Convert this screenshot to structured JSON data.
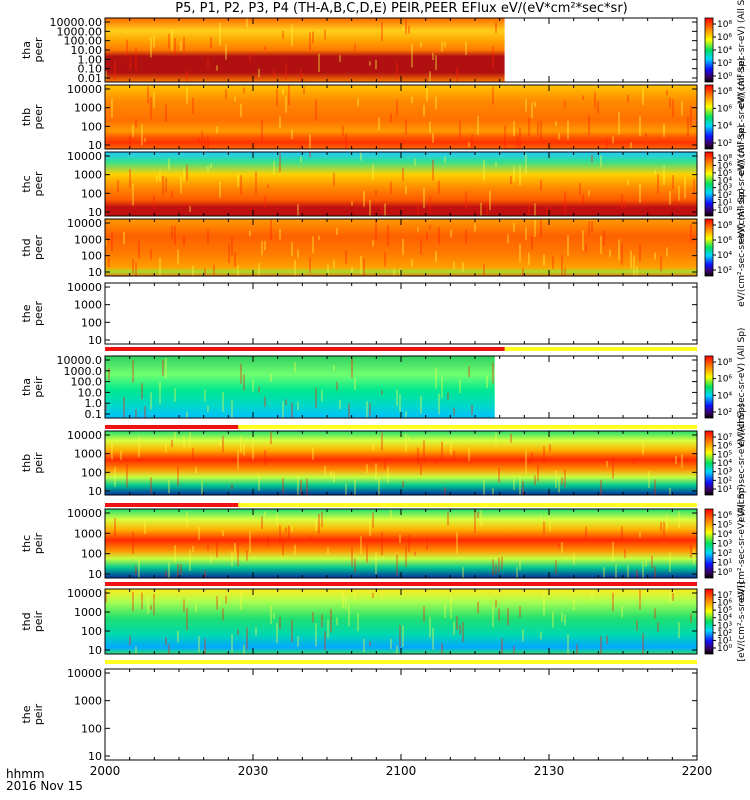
{
  "title": "P5, P1, P2, P3, P4 (TH-A,B,C,D,E) PEIR,PEER EFlux eV/(eV*cm²*sec*sr)",
  "x_axis": {
    "label_line1": "hhmm",
    "label_line2": "2016 Nov 15",
    "ticks": [
      "2000",
      "2030",
      "2100",
      "2130",
      "2200"
    ]
  },
  "colors": {
    "flag_red": "#ee1111",
    "flag_yellow": "#ffff22",
    "flag_black": "#000000"
  },
  "chart_data": [
    {
      "type": "heatmap",
      "id": "tha_peer",
      "ylabel": [
        "tha",
        "peer"
      ],
      "yticks": [
        "10000.00",
        "1000.00",
        "100.00",
        "10.00",
        "1.00",
        "0.10",
        "0.01"
      ],
      "data_end_hhmm": "2121",
      "cbar_ticks": [
        "10⁸",
        "10⁶",
        "10⁴",
        "10²",
        "10⁰"
      ],
      "cbar_label": "eV/(cm²-sec-sr-eV) (All Sp)"
    },
    {
      "type": "heatmap",
      "id": "thb_peer",
      "ylabel": [
        "thb",
        "peer"
      ],
      "yticks": [
        "10000",
        "1000",
        "100",
        "10"
      ],
      "data_end_hhmm": "2200",
      "cbar_ticks": [
        "10⁸",
        "10⁶",
        "10⁴",
        "10²"
      ],
      "cbar_label": "eV/(cm²-sec-sr-eV) (All Sp)"
    },
    {
      "type": "heatmap",
      "id": "thc_peer",
      "ylabel": [
        "thc",
        "peer"
      ],
      "yticks": [
        "10000",
        "1000",
        "100",
        "10"
      ],
      "data_end_hhmm": "2200",
      "cbar_ticks": [
        "10⁸",
        "10⁶",
        "10⁵",
        "10⁴",
        "10³",
        "10²",
        "10¹",
        "10⁰"
      ],
      "cbar_label": "eV/(cm²-sec-sr-eV) (All Sp)"
    },
    {
      "type": "heatmap",
      "id": "thd_peer",
      "ylabel": [
        "thd",
        "peer"
      ],
      "yticks": [
        "10000",
        "1000",
        "100",
        "10"
      ],
      "data_end_hhmm": "2200",
      "cbar_ticks": [
        "10⁸",
        "10⁶",
        "10⁴",
        "10²"
      ],
      "cbar_label": "eV/(cm²-sec-sr-eV) (All Sp)"
    },
    {
      "type": "heatmap",
      "id": "the_peer",
      "ylabel": [
        "the",
        "peer"
      ],
      "yticks": [
        "10000",
        "1000",
        "100",
        "10"
      ],
      "data_end_hhmm": null,
      "flag_red_until_hhmm": "2121",
      "cbar_ticks": [],
      "cbar_label": "eV/(cm²-sec-sr-eV) (All Sp)"
    },
    {
      "type": "heatmap",
      "id": "tha_peir",
      "ylabel": [
        "tha",
        "peir"
      ],
      "yticks": [
        "10000.0",
        "1000.0",
        "100.0",
        "10.0",
        "1.0",
        "0.1"
      ],
      "data_end_hhmm": "2119",
      "flag_red_until_hhmm": "2027",
      "cbar_ticks": [
        "10⁸",
        "10⁶",
        "10⁴",
        "10²"
      ],
      "cbar_label": "eV/(cm²-sec-sr-eV) (All Sp)"
    },
    {
      "type": "heatmap",
      "id": "thb_peir",
      "ylabel": [
        "thb",
        "peir"
      ],
      "yticks": [
        "10000",
        "1000",
        "100",
        "10"
      ],
      "data_end_hhmm": "2200",
      "flag_red_until_hhmm": "2027",
      "cbar_ticks": [
        "10⁷",
        "10⁶",
        "10⁵",
        "10⁴",
        "10³",
        "10²",
        "10¹"
      ],
      "cbar_label": "eV/(cm²-sec-sr-eV) (All Sp)"
    },
    {
      "type": "heatmap",
      "id": "thc_peir",
      "ylabel": [
        "thc",
        "peir"
      ],
      "yticks": [
        "10000",
        "1000",
        "100",
        "10"
      ],
      "data_end_hhmm": "2200",
      "flag_red_until_hhmm": "2200",
      "cbar_ticks": [
        "10⁶",
        "10⁵",
        "10⁴",
        "10³",
        "10²",
        "10¹",
        "10⁰"
      ],
      "cbar_label": "eV/(cm²-sec-sr-eV) (All Sp)"
    },
    {
      "type": "heatmap",
      "id": "thd_peir",
      "ylabel": [
        "thd",
        "peir"
      ],
      "yticks": [
        "10000",
        "1000",
        "100",
        "10"
      ],
      "data_end_hhmm": "2200",
      "flag_red_until_hhmm": null,
      "cbar_ticks": [
        "10⁷",
        "10⁶",
        "10⁵",
        "10⁴",
        "10³",
        "10²",
        "10¹",
        "10⁰"
      ],
      "cbar_label": "[eV/(cm²-s-sr-eV)]"
    },
    {
      "type": "heatmap",
      "id": "the_peir",
      "ylabel": [
        "the",
        "peir"
      ],
      "yticks": [
        "10000",
        "1000",
        "100",
        "10"
      ],
      "data_end_hhmm": null,
      "flag_red_until_hhmm": null,
      "cbar_ticks": [],
      "cbar_label": ""
    }
  ]
}
